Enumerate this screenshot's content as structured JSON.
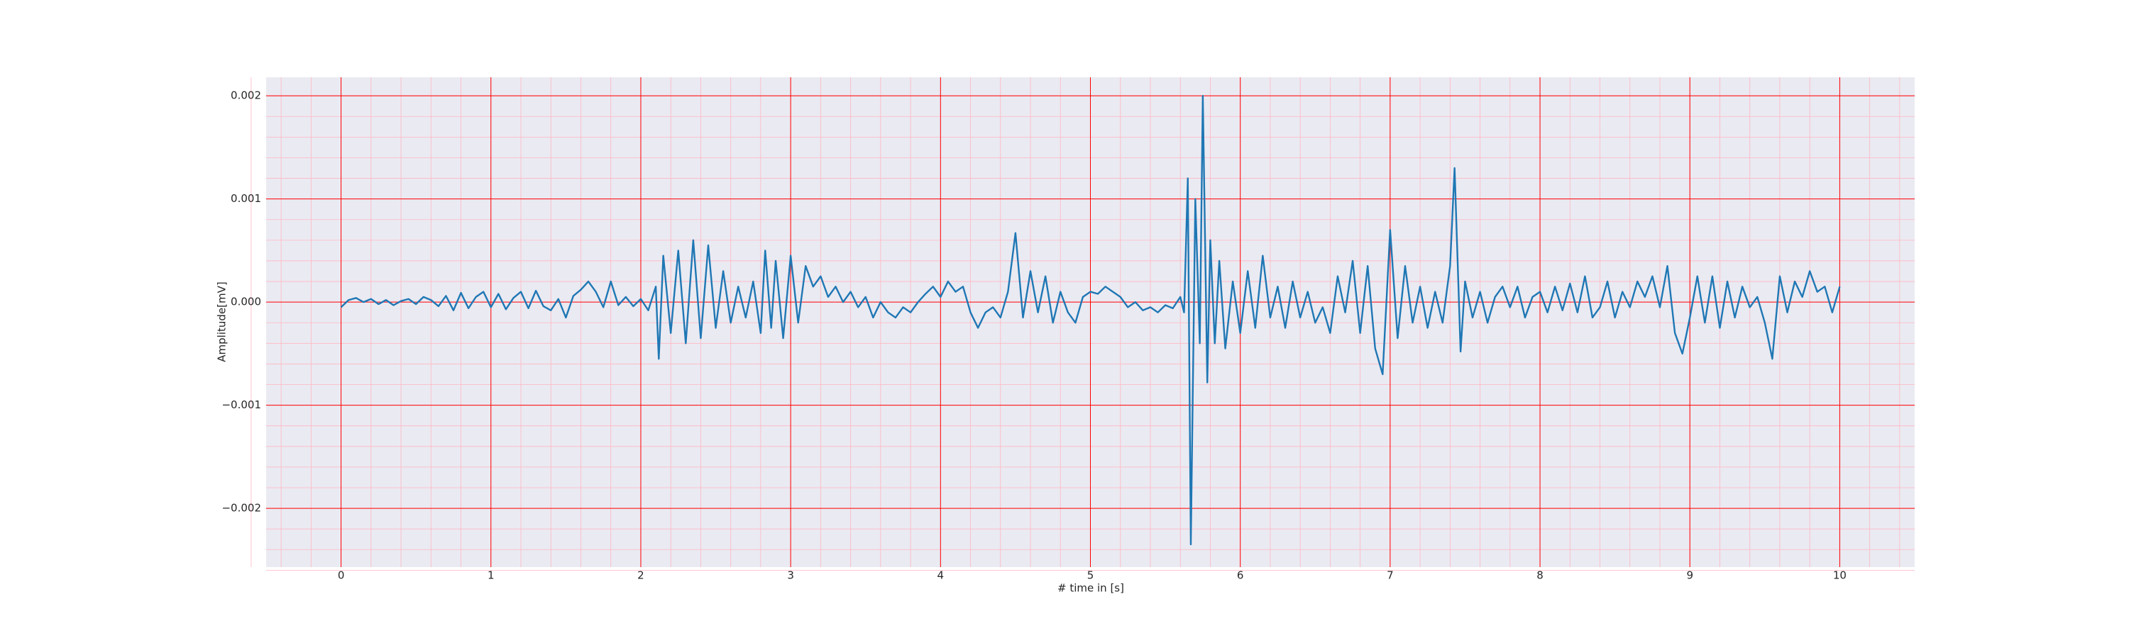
{
  "chart_data": {
    "type": "line",
    "xlabel": "# time in [s]",
    "ylabel": "Amplitude[mV]",
    "xlim": [
      -0.5,
      10.5
    ],
    "ylim": [
      -0.00257,
      0.00218
    ],
    "xticks": [
      0,
      1,
      2,
      3,
      4,
      5,
      6,
      7,
      8,
      9,
      10
    ],
    "yticks": [
      {
        "value": -0.002,
        "label": "−0.002"
      },
      {
        "value": -0.001,
        "label": "−0.001"
      },
      {
        "value": 0,
        "label": "0.000"
      },
      0.001,
      0.002
    ],
    "grid": true,
    "minor_grid": true,
    "grid_color": "#ff0000",
    "minor_grid_color": "#ffb6c1",
    "background": "#eaeaf2",
    "series": [
      {
        "color": "#1f77b4",
        "x": [
          0.0,
          0.05,
          0.1,
          0.15,
          0.2,
          0.25,
          0.3,
          0.35,
          0.4,
          0.45,
          0.5,
          0.55,
          0.6,
          0.65,
          0.7,
          0.75,
          0.8,
          0.85,
          0.9,
          0.95,
          1.0,
          1.05,
          1.1,
          1.15,
          1.2,
          1.25,
          1.3,
          1.35,
          1.4,
          1.45,
          1.5,
          1.55,
          1.6,
          1.65,
          1.7,
          1.75,
          1.8,
          1.85,
          1.9,
          1.95,
          2.0,
          2.05,
          2.1,
          2.12,
          2.15,
          2.2,
          2.25,
          2.3,
          2.35,
          2.4,
          2.45,
          2.5,
          2.55,
          2.6,
          2.65,
          2.7,
          2.75,
          2.8,
          2.83,
          2.87,
          2.9,
          2.95,
          3.0,
          3.05,
          3.1,
          3.15,
          3.2,
          3.25,
          3.3,
          3.35,
          3.4,
          3.45,
          3.5,
          3.55,
          3.6,
          3.65,
          3.7,
          3.75,
          3.8,
          3.85,
          3.9,
          3.95,
          4.0,
          4.05,
          4.1,
          4.15,
          4.2,
          4.25,
          4.3,
          4.35,
          4.4,
          4.45,
          4.5,
          4.55,
          4.6,
          4.65,
          4.7,
          4.75,
          4.8,
          4.85,
          4.9,
          4.95,
          5.0,
          5.05,
          5.1,
          5.15,
          5.2,
          5.25,
          5.3,
          5.35,
          5.4,
          5.45,
          5.5,
          5.55,
          5.6,
          5.625,
          5.65,
          5.67,
          5.7,
          5.73,
          5.75,
          5.78,
          5.8,
          5.83,
          5.86,
          5.9,
          5.95,
          6.0,
          6.05,
          6.1,
          6.15,
          6.2,
          6.25,
          6.3,
          6.35,
          6.4,
          6.45,
          6.5,
          6.55,
          6.6,
          6.65,
          6.7,
          6.75,
          6.8,
          6.85,
          6.9,
          6.95,
          7.0,
          7.05,
          7.1,
          7.15,
          7.2,
          7.25,
          7.3,
          7.35,
          7.4,
          7.43,
          7.47,
          7.5,
          7.55,
          7.6,
          7.65,
          7.7,
          7.75,
          7.8,
          7.85,
          7.9,
          7.95,
          8.0,
          8.05,
          8.1,
          8.15,
          8.2,
          8.25,
          8.3,
          8.35,
          8.4,
          8.45,
          8.5,
          8.55,
          8.6,
          8.65,
          8.7,
          8.75,
          8.8,
          8.85,
          8.9,
          8.95,
          9.0,
          9.05,
          9.1,
          9.15,
          9.2,
          9.25,
          9.3,
          9.35,
          9.4,
          9.45,
          9.5,
          9.55,
          9.6,
          9.65,
          9.7,
          9.75,
          9.8,
          9.85,
          9.9,
          9.95,
          10.0
        ],
        "values": [
          -5e-05,
          2e-05,
          4e-05,
          0.0,
          3e-05,
          -2e-05,
          2e-05,
          -3e-05,
          1e-05,
          3e-05,
          -2e-05,
          5e-05,
          2e-05,
          -4e-05,
          6e-05,
          -8e-05,
          9e-05,
          -6e-05,
          5e-05,
          0.0001,
          -5e-05,
          8e-05,
          -7e-05,
          4e-05,
          0.0001,
          -6e-05,
          0.00011,
          -4e-05,
          -8e-05,
          3e-05,
          -0.00015,
          6e-05,
          0.00012,
          0.0002,
          0.0001,
          -5e-05,
          0.0002,
          -3e-05,
          5e-05,
          -4e-05,
          3e-05,
          -8e-05,
          0.00015,
          -0.00055,
          0.00045,
          -0.0003,
          0.0005,
          -0.0004,
          0.0006,
          -0.00035,
          0.00055,
          -0.00025,
          0.0003,
          -0.0002,
          0.00015,
          -0.00015,
          0.0002,
          -0.0003,
          0.0005,
          -0.00025,
          0.0004,
          -0.00035,
          0.00045,
          -0.0002,
          0.00035,
          0.00015,
          0.00025,
          5e-05,
          0.00015,
          0.0,
          0.0001,
          -5e-05,
          5e-05,
          -0.00015,
          0.0,
          -0.0001,
          -0.00015,
          -5e-05,
          -0.0001,
          0.0,
          8e-05,
          0.00015,
          5e-05,
          0.0002,
          0.0001,
          0.00015,
          -0.0001,
          -0.00025,
          -0.0001,
          -5e-05,
          -0.00015,
          0.0001,
          0.00067,
          -0.00015,
          0.0003,
          -0.0001,
          0.00025,
          -0.0002,
          0.0001,
          -0.0001,
          -0.0002,
          5e-05,
          0.0001,
          8e-05,
          0.00015,
          0.0001,
          5e-05,
          -5e-05,
          0.0,
          -8e-05,
          -5e-05,
          -0.0001,
          -3e-05,
          -6e-05,
          5e-05,
          -0.0001,
          0.0012,
          -0.00235,
          0.001,
          -0.0004,
          0.002,
          -0.00078,
          0.0006,
          -0.0004,
          0.0004,
          -0.00045,
          0.0002,
          -0.0003,
          0.0003,
          -0.00025,
          0.00045,
          -0.00015,
          0.00015,
          -0.00025,
          0.0002,
          -0.00015,
          0.0001,
          -0.0002,
          -5e-05,
          -0.0003,
          0.00025,
          -0.0001,
          0.0004,
          -0.0003,
          0.00035,
          -0.00045,
          -0.0007,
          0.0007,
          -0.00035,
          0.00035,
          -0.0002,
          0.00015,
          -0.00025,
          0.0001,
          -0.0002,
          0.00035,
          0.0013,
          -0.00048,
          0.0002,
          -0.00015,
          0.0001,
          -0.0002,
          5e-05,
          0.00015,
          -5e-05,
          0.00015,
          -0.00015,
          5e-05,
          0.0001,
          -0.0001,
          0.00015,
          -8e-05,
          0.00018,
          -0.0001,
          0.00025,
          -0.00015,
          -5e-05,
          0.0002,
          -0.00015,
          0.0001,
          -5e-05,
          0.0002,
          5e-05,
          0.00025,
          -5e-05,
          0.00035,
          -0.0003,
          -0.0005,
          -0.00015,
          0.00025,
          -0.0002,
          0.00025,
          -0.00025,
          0.0002,
          -0.00015,
          0.00015,
          -5e-05,
          5e-05,
          -0.0002,
          -0.00055,
          0.00025,
          -0.0001,
          0.0002,
          5e-05,
          0.0003,
          0.0001,
          0.00015,
          -0.0001,
          0.00015
        ]
      }
    ]
  }
}
